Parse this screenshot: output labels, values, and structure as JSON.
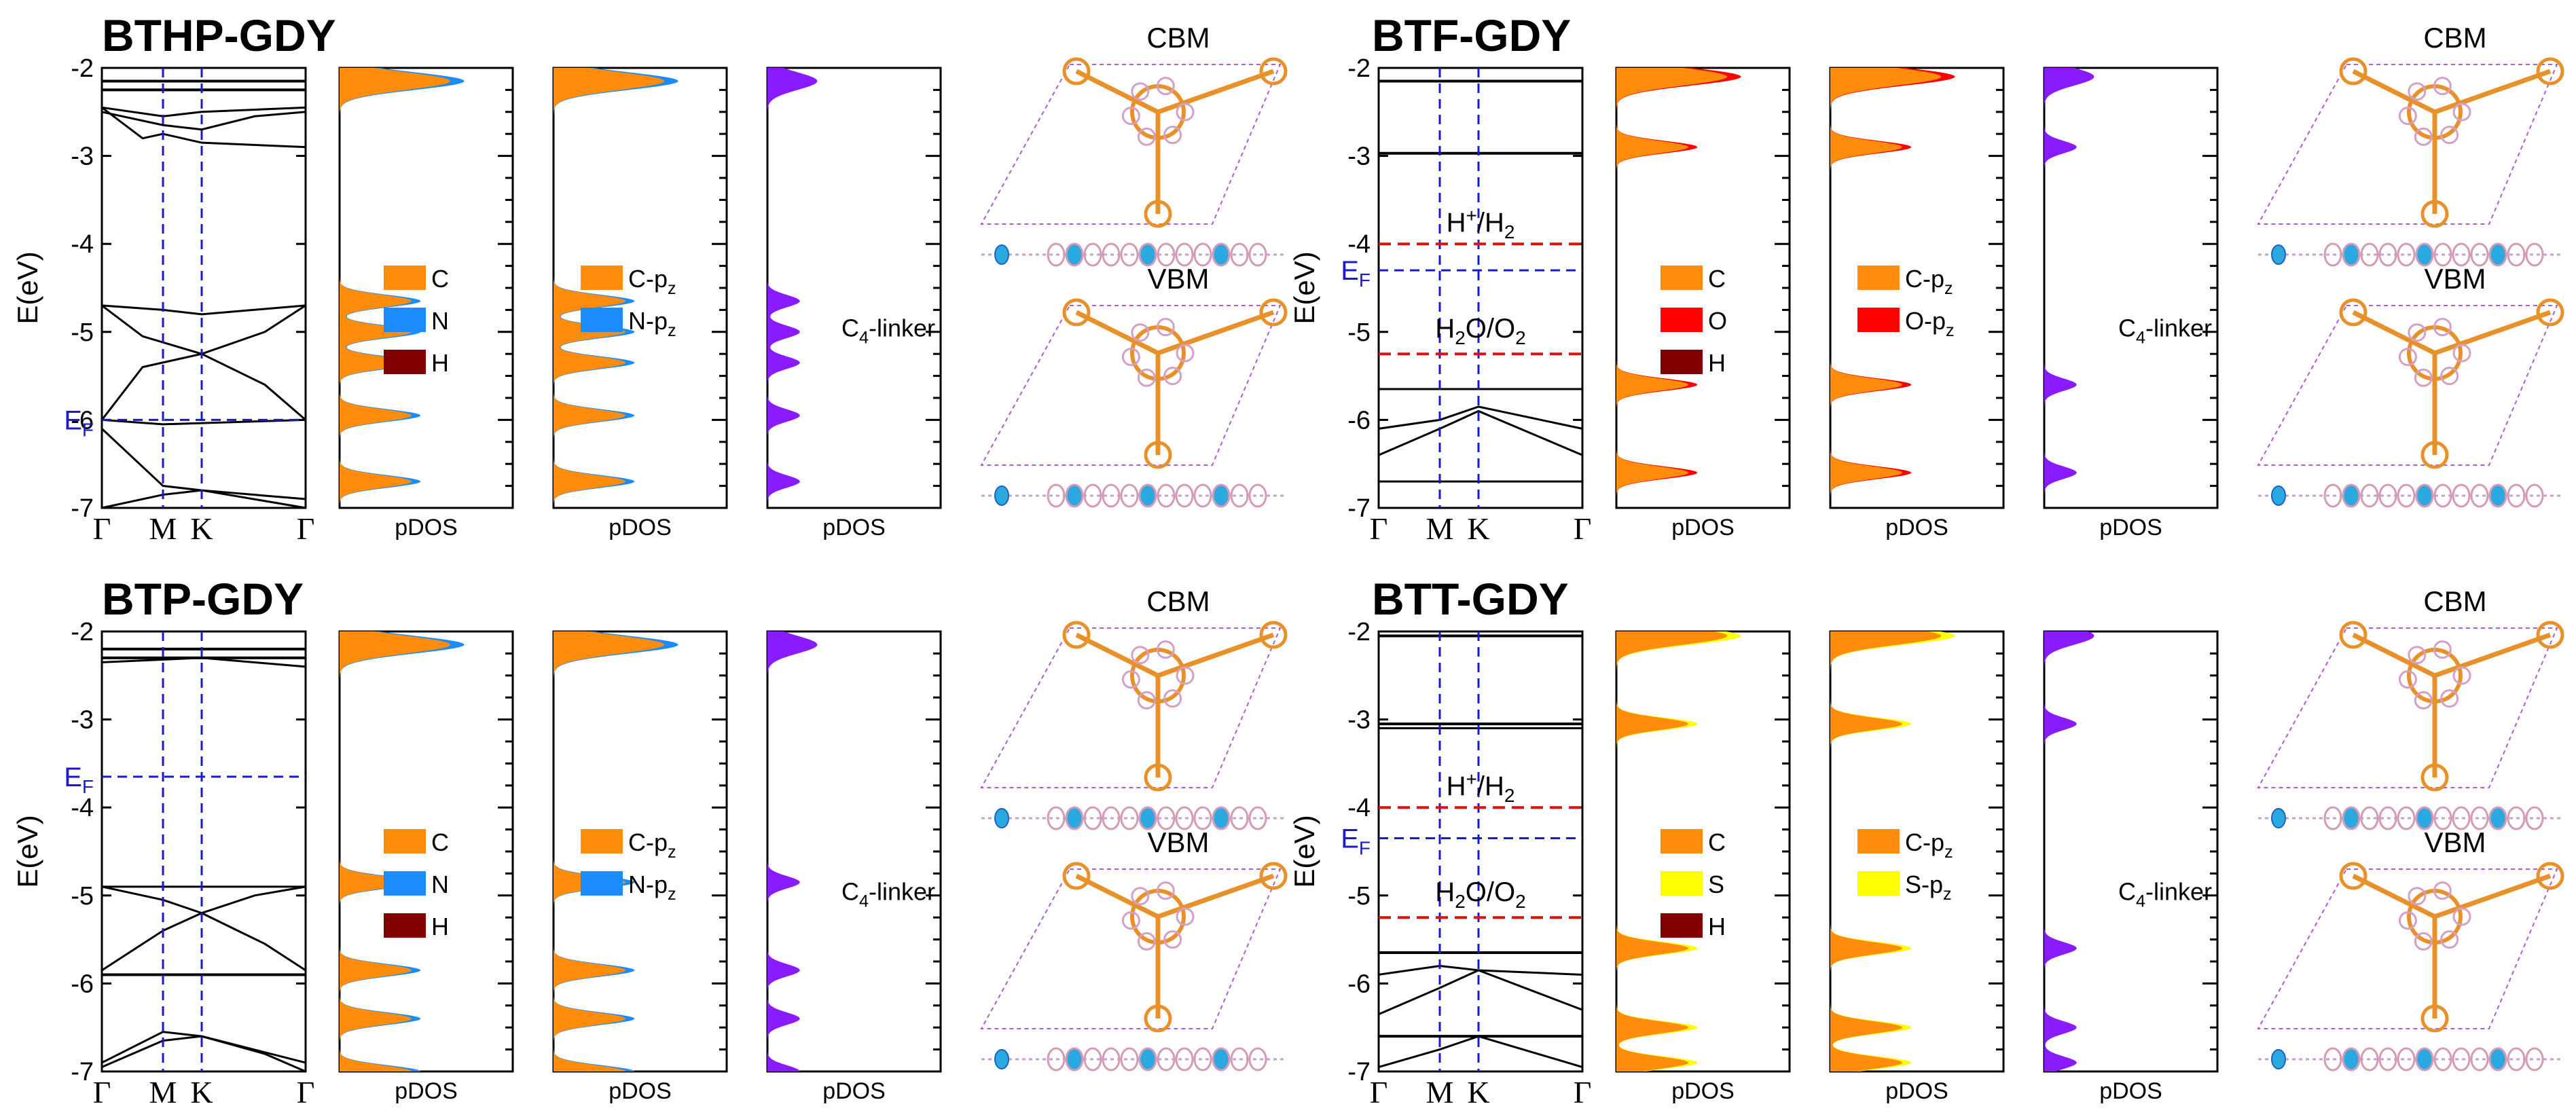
{
  "figure": {
    "band_xlabels": [
      "Γ",
      "M",
      "K",
      "Γ"
    ],
    "ylabel": "E(eV)",
    "pdos_xlabel": "pDOS",
    "yticks": [
      "-2",
      "-3",
      "-4",
      "-5",
      "-6",
      "-7"
    ],
    "ylim": [
      -7,
      -2
    ],
    "ef_label": "E",
    "ef_sub": "F",
    "h_level_main": "H",
    "h_level_sup": "+",
    "h_level_rest": "/H",
    "h_level_sub": "2",
    "o_level_a": "H",
    "o_level_a_sub": "2",
    "o_level_b": "O/O",
    "o_level_b_sub": "2",
    "cbm_label": "CBM",
    "vbm_label": "VBM",
    "linker_label": "C",
    "linker_sub": "4",
    "linker_rest": "-linker"
  },
  "colors": {
    "C": "#ff8c0a",
    "N": "#1a8cff",
    "H": "#800000",
    "O": "#ff0000",
    "S": "#ffff00",
    "linker": "#8a1aff",
    "fermi": "#1a1acc",
    "redox": "#e01010"
  },
  "chart_data": [
    {
      "type": "area",
      "title": "BTHP-GDY",
      "ylabel": "E(eV)",
      "ylim": [
        -7,
        -2
      ],
      "fermi_level": -6.0,
      "fermi_label_shown": true,
      "redox_levels": null,
      "band_flat_levels": [
        -2.15,
        -2.25
      ],
      "band_lines": "dispersive bands near -2.4 to -2.9 and -4.7 to -7",
      "legend_total": [
        "C",
        "N",
        "H"
      ],
      "legend_orbital": [
        "C-pz",
        "N-pz"
      ],
      "pdos_peaks_eV": [
        -2.15,
        -4.65,
        -5.0,
        -5.35,
        -5.95,
        -6.7
      ],
      "panels": [
        "band",
        "pDOS total",
        "pDOS orbital",
        "pDOS C4-linker"
      ]
    },
    {
      "type": "area",
      "title": "BTF-GDY",
      "ylabel": "E(eV)",
      "ylim": [
        -7,
        -2
      ],
      "fermi_level": -4.3,
      "h_plus_h2_level": -4.0,
      "h2o_o2_level": -5.25,
      "band_flat_levels": [
        -2.15,
        -2.97
      ],
      "legend_total": [
        "C",
        "O",
        "H"
      ],
      "legend_orbital": [
        "C-pz",
        "O-pz"
      ],
      "pdos_peaks_eV": [
        -2.1,
        -2.9,
        -5.6,
        -6.6
      ],
      "panels": [
        "band",
        "pDOS total",
        "pDOS orbital",
        "pDOS C4-linker"
      ]
    },
    {
      "type": "area",
      "title": "BTP-GDY",
      "ylabel": "E(eV)",
      "ylim": [
        -7,
        -2
      ],
      "fermi_level": -3.65,
      "band_flat_levels": [
        -2.2,
        -2.3,
        -5.9
      ],
      "legend_total": [
        "C",
        "N",
        "H"
      ],
      "legend_orbital": [
        "C-pz",
        "N-pz"
      ],
      "pdos_peaks_eV": [
        -2.15,
        -4.85,
        -5.85,
        -6.4,
        -7.0
      ],
      "panels": [
        "band",
        "pDOS total",
        "pDOS orbital",
        "pDOS C4-linker"
      ]
    },
    {
      "type": "area",
      "title": "BTT-GDY",
      "ylabel": "E(eV)",
      "ylim": [
        -7,
        -2
      ],
      "fermi_level": -4.35,
      "h_plus_h2_level": -4.0,
      "h2o_o2_level": -5.25,
      "band_flat_levels": [
        -2.05,
        -3.05,
        -5.65,
        -6.6
      ],
      "legend_total": [
        "C",
        "S",
        "H"
      ],
      "legend_orbital": [
        "C-pz",
        "S-pz"
      ],
      "pdos_peaks_eV": [
        -2.05,
        -3.05,
        -5.6,
        -6.5,
        -6.9
      ],
      "panels": [
        "band",
        "pDOS total",
        "pDOS orbital",
        "pDOS C4-linker"
      ]
    }
  ]
}
